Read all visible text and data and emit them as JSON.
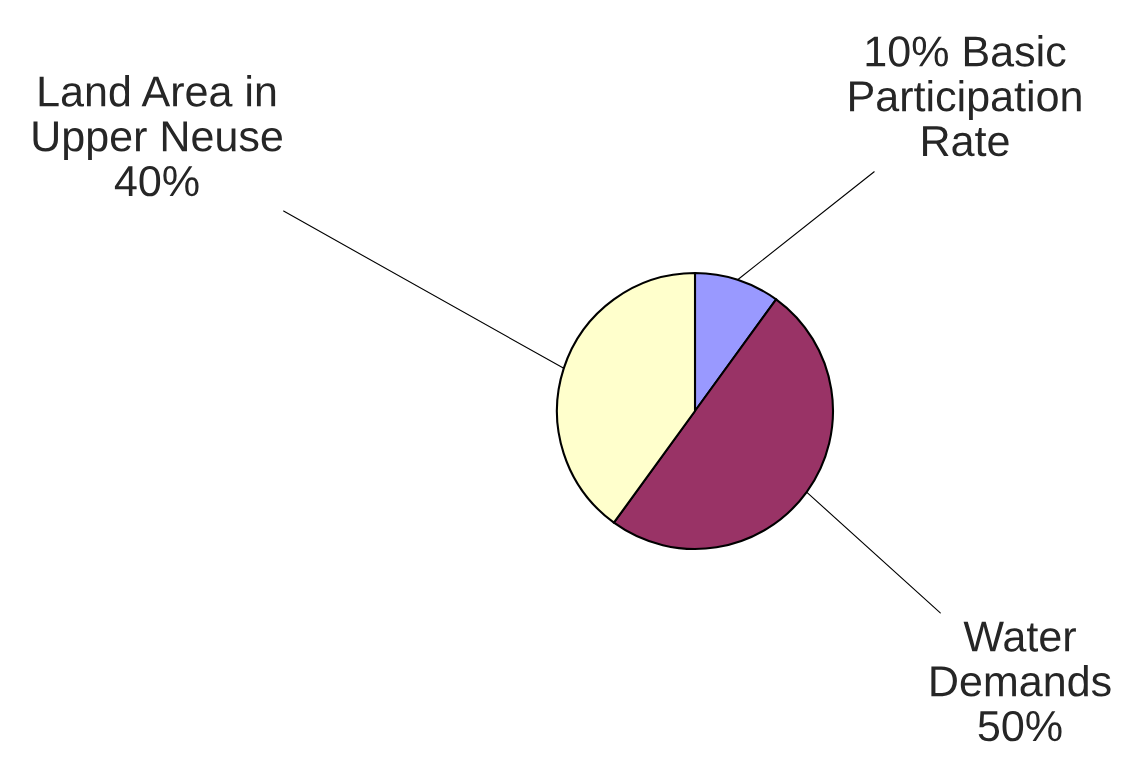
{
  "chart_data": {
    "type": "pie",
    "categories": [
      "10% Basic\nParticipation\nRate",
      "Water\nDemands\n50%",
      "Land Area in\nUpper Neuse\n40%"
    ],
    "values": [
      10,
      50,
      40
    ],
    "colors": [
      "#9999ff",
      "#993366",
      "#ffffcc"
    ]
  }
}
